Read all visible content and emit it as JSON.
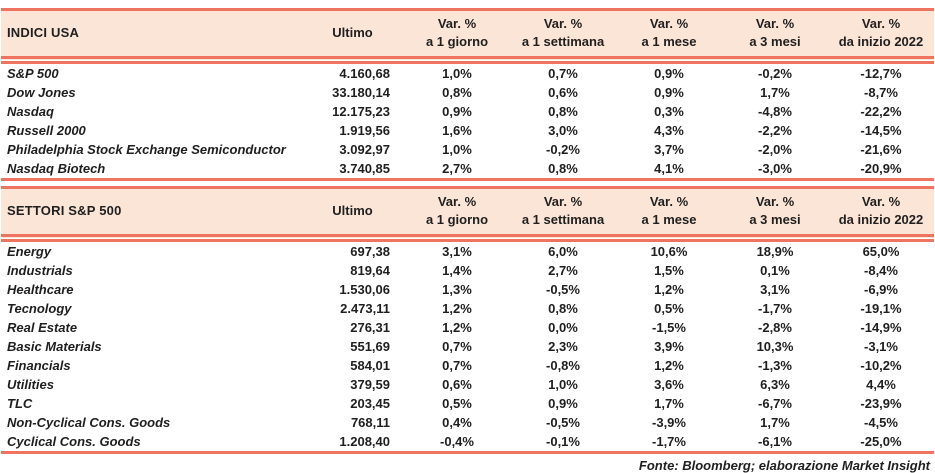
{
  "colors": {
    "header_band_bg": "#FBE5D6",
    "rule_line": "#EE7460",
    "text": "#1f1f1f"
  },
  "columns": {
    "ultimo": "Ultimo",
    "var_top": "Var. %",
    "var_subs": [
      "a 1 giorno",
      "a 1 settimana",
      "a 1 mese",
      "a 3 mesi",
      "da inizio 2022"
    ]
  },
  "tables": [
    {
      "title": "INDICI USA",
      "rows": [
        {
          "label": "S&P 500",
          "ultimo": "4.160,68",
          "vars": [
            "1,0%",
            "0,7%",
            "0,9%",
            "-0,2%",
            "-12,7%"
          ]
        },
        {
          "label": "Dow Jones",
          "ultimo": "33.180,14",
          "vars": [
            "0,8%",
            "0,6%",
            "0,9%",
            "1,7%",
            "-8,7%"
          ]
        },
        {
          "label": "Nasdaq",
          "ultimo": "12.175,23",
          "vars": [
            "0,9%",
            "0,8%",
            "0,3%",
            "-4,8%",
            "-22,2%"
          ]
        },
        {
          "label": "Russell 2000",
          "ultimo": "1.919,56",
          "vars": [
            "1,6%",
            "3,0%",
            "4,3%",
            "-2,2%",
            "-14,5%"
          ]
        },
        {
          "label": "Philadelphia Stock Exchange Semiconductor",
          "ultimo": "3.092,97",
          "vars": [
            "1,0%",
            "-0,2%",
            "3,7%",
            "-2,0%",
            "-21,6%"
          ]
        },
        {
          "label": "Nasdaq Biotech",
          "ultimo": "3.740,85",
          "vars": [
            "2,7%",
            "0,8%",
            "4,1%",
            "-3,0%",
            "-20,9%"
          ]
        }
      ]
    },
    {
      "title": "SETTORI S&P 500",
      "rows": [
        {
          "label": "Energy",
          "ultimo": "697,38",
          "vars": [
            "3,1%",
            "6,0%",
            "10,6%",
            "18,9%",
            "65,0%"
          ]
        },
        {
          "label": "Industrials",
          "ultimo": "819,64",
          "vars": [
            "1,4%",
            "2,7%",
            "1,5%",
            "0,1%",
            "-8,4%"
          ]
        },
        {
          "label": "Healthcare",
          "ultimo": "1.530,06",
          "vars": [
            "1,3%",
            "-0,5%",
            "1,2%",
            "3,1%",
            "-6,9%"
          ]
        },
        {
          "label": "Tecnology",
          "ultimo": "2.473,11",
          "vars": [
            "1,2%",
            "0,8%",
            "0,5%",
            "-1,7%",
            "-19,1%"
          ]
        },
        {
          "label": "Real Estate",
          "ultimo": "276,31",
          "vars": [
            "1,2%",
            "0,0%",
            "-1,5%",
            "-2,8%",
            "-14,9%"
          ]
        },
        {
          "label": "Basic Materials",
          "ultimo": "551,69",
          "vars": [
            "0,7%",
            "2,3%",
            "3,9%",
            "10,3%",
            "-3,1%"
          ]
        },
        {
          "label": "Financials",
          "ultimo": "584,01",
          "vars": [
            "0,7%",
            "-0,8%",
            "1,2%",
            "-1,3%",
            "-10,2%"
          ]
        },
        {
          "label": "Utilities",
          "ultimo": "379,59",
          "vars": [
            "0,6%",
            "1,0%",
            "3,6%",
            "6,3%",
            "4,4%"
          ]
        },
        {
          "label": "TLC",
          "ultimo": "203,45",
          "vars": [
            "0,5%",
            "0,9%",
            "1,7%",
            "-6,7%",
            "-23,9%"
          ]
        },
        {
          "label": "Non-Cyclical Cons. Goods",
          "ultimo": "768,11",
          "vars": [
            "0,4%",
            "-0,5%",
            "-3,9%",
            "1,7%",
            "-4,5%"
          ]
        },
        {
          "label": "Cyclical Cons. Goods",
          "ultimo": "1.208,40",
          "vars": [
            "-0,4%",
            "-0,1%",
            "-1,7%",
            "-6,1%",
            "-25,0%"
          ]
        }
      ]
    }
  ],
  "footer": "Fonte: Bloomberg; elaborazione Market Insight"
}
